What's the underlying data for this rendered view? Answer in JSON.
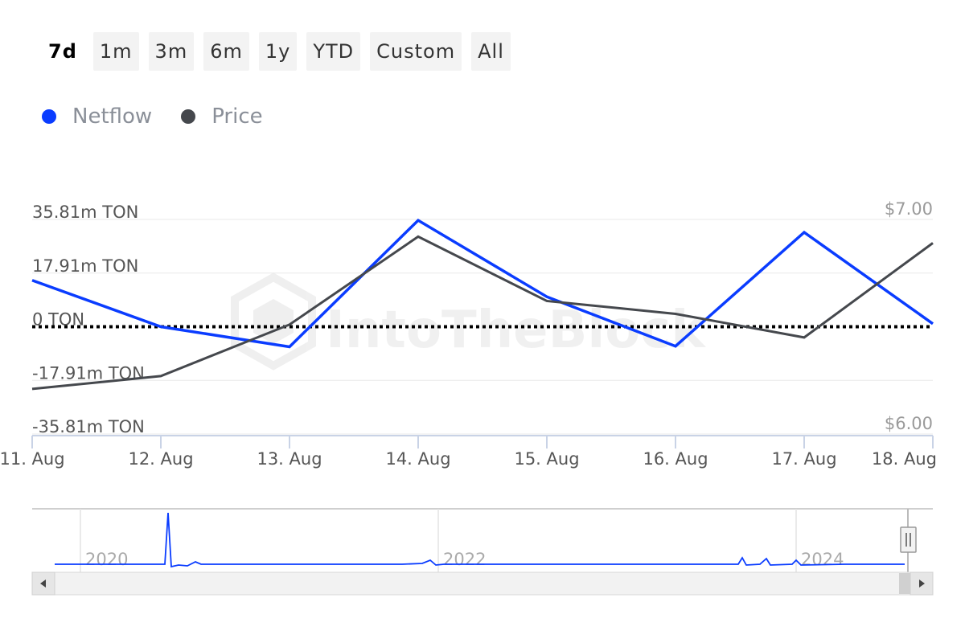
{
  "range_buttons": [
    "7d",
    "1m",
    "3m",
    "6m",
    "1y",
    "YTD",
    "Custom",
    "All"
  ],
  "active_range": "7d",
  "legend": [
    {
      "label": "Netflow",
      "color": "#0a3cff"
    },
    {
      "label": "Price",
      "color": "#45484d"
    }
  ],
  "watermark": "IntoTheBlock",
  "navigator": {
    "years": [
      "2020",
      "2022",
      "2024"
    ]
  },
  "chart_data": {
    "type": "line",
    "categories": [
      "11. Aug",
      "12. Aug",
      "13. Aug",
      "14. Aug",
      "15. Aug",
      "16. Aug",
      "17. Aug",
      "18. Aug"
    ],
    "left_axis_ticks": [
      "35.81m TON",
      "17.91m TON",
      "0 TON",
      "-17.91m TON",
      "-35.81m TON"
    ],
    "right_axis_ticks": [
      "$7.00",
      "$6.00"
    ],
    "y_left_lim": [
      -35.81,
      35.81
    ],
    "y_left_unit": "m TON",
    "y_right_lim": [
      6.0,
      7.0
    ],
    "zero_line": "dotted",
    "grid": true,
    "legend_position": "top-left",
    "series": [
      {
        "name": "Netflow",
        "axis": "left",
        "color": "#0a3cff",
        "values": [
          15.5,
          0.0,
          -6.7,
          35.5,
          10.0,
          -6.5,
          31.5,
          1.0
        ]
      },
      {
        "name": "Price",
        "axis": "right",
        "color": "#45484d",
        "values": [
          6.21,
          6.27,
          6.51,
          6.92,
          6.62,
          6.56,
          6.45,
          6.89
        ]
      }
    ]
  }
}
